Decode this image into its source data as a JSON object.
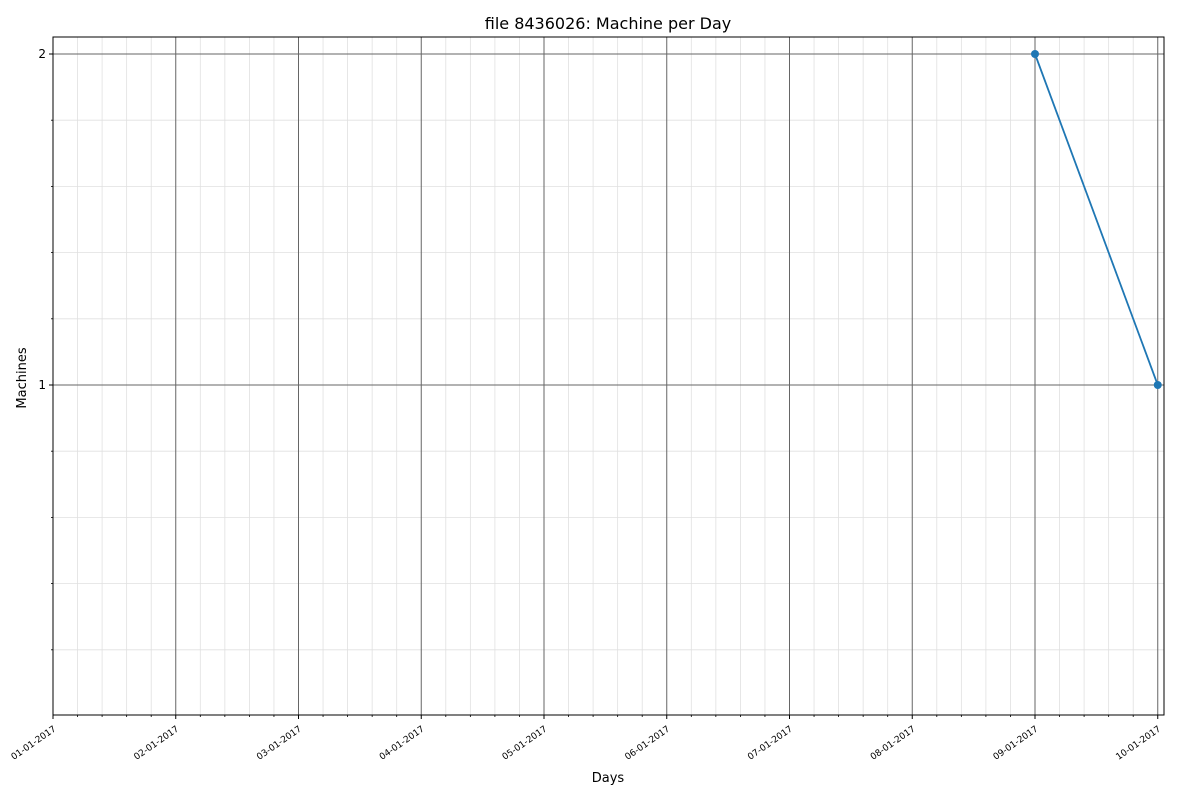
{
  "chart_data": {
    "type": "line",
    "title": "file 8436026: Machine per Day",
    "xlabel": "Days",
    "ylabel": "Machines",
    "x_ticks": [
      "01-01-2017",
      "02-01-2017",
      "03-01-2017",
      "04-01-2017",
      "05-01-2017",
      "06-01-2017",
      "07-01-2017",
      "08-01-2017",
      "09-01-2017",
      "10-01-2017"
    ],
    "y_ticks": [
      "1",
      "2"
    ],
    "series": [
      {
        "x": [
          "09-01-2017",
          "10-01-2017"
        ],
        "y": [
          2,
          1
        ],
        "color": "#1f77b4"
      }
    ],
    "grid": true,
    "minor_grid": true,
    "colors": {
      "line": "#1f77b4",
      "major_grid": "#666666",
      "minor_grid": "#e0e0e0"
    }
  }
}
